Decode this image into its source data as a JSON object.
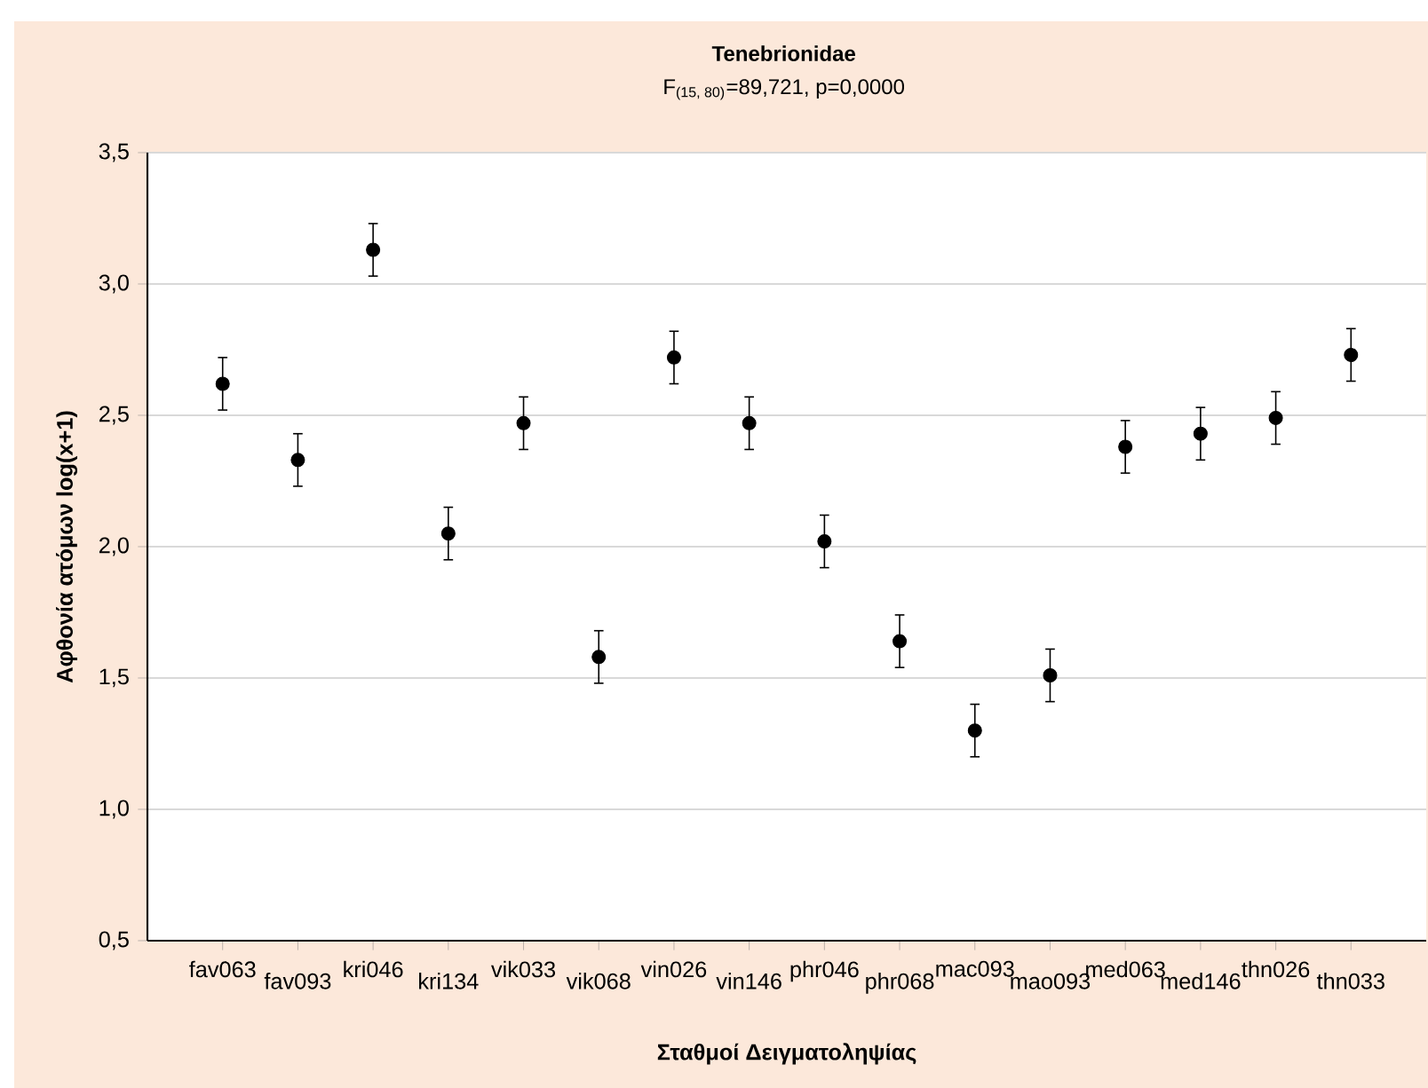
{
  "chart_data": {
    "type": "scatter",
    "title": "Tenebrionidae",
    "subtitle": "F$_{(15, 80)}$=89,721, p=0,0000",
    "xlabel": "Σταθμοί Δειγματοληψίας",
    "ylabel": "Αφθονία ατόμων log(x+1)",
    "categories": [
      "fav063",
      "fav093",
      "kri046",
      "kri134",
      "vik033",
      "vik068",
      "vin026",
      "vin146",
      "phr046",
      "phr068",
      "mac093",
      "mao093",
      "med063",
      "med146",
      "thn026",
      "thn033"
    ],
    "values": [
      2.62,
      2.33,
      3.13,
      2.05,
      2.47,
      1.58,
      2.72,
      2.47,
      2.02,
      1.64,
      1.3,
      1.51,
      2.38,
      2.43,
      2.49,
      2.73
    ],
    "errors": [
      0.1,
      0.1,
      0.1,
      0.1,
      0.1,
      0.1,
      0.1,
      0.1,
      0.1,
      0.1,
      0.1,
      0.1,
      0.1,
      0.1,
      0.1,
      0.1
    ],
    "color": "#000000",
    "marker": "circle",
    "grid": "y",
    "ylim": [
      0.5,
      3.5
    ],
    "yticks": [
      {
        "value": 0.5,
        "label": "0,5"
      },
      {
        "value": 1.0,
        "label": "1,0"
      },
      {
        "value": 1.5,
        "label": "1,5"
      },
      {
        "value": 2.0,
        "label": "2,0"
      },
      {
        "value": 2.5,
        "label": "2,5"
      },
      {
        "value": 3.0,
        "label": "3,0"
      },
      {
        "value": 3.5,
        "label": "3,5"
      }
    ]
  }
}
